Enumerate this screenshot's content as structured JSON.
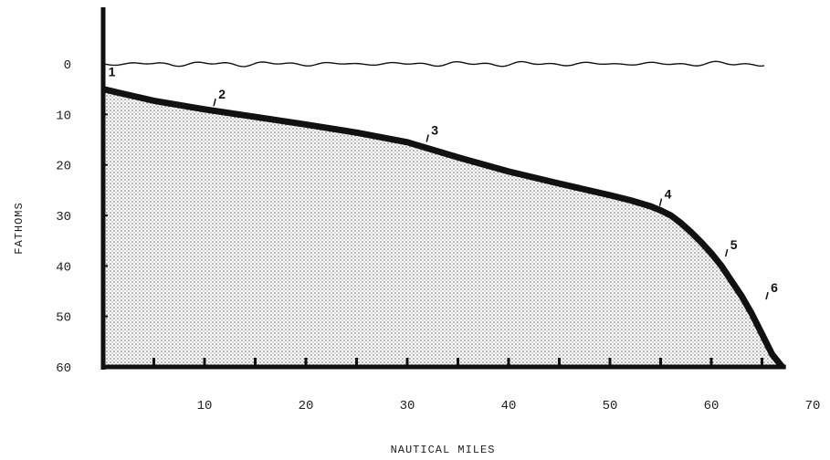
{
  "chart_data": {
    "type": "area",
    "title": "",
    "xlabel": "NAUTICAL MILES",
    "ylabel": "FATHOMS",
    "xlim": [
      0,
      70
    ],
    "ylim": [
      0,
      60
    ],
    "y_inverted": true,
    "x_ticks": [
      "10",
      "20",
      "30",
      "40",
      "50",
      "60",
      "70"
    ],
    "y_ticks": [
      "0",
      "10",
      "20",
      "30",
      "40",
      "50",
      "60"
    ],
    "grid": false,
    "fill_pattern": "stipple",
    "profile": {
      "x": [
        0,
        5,
        10,
        15,
        20,
        25,
        30,
        35,
        40,
        45,
        50,
        52,
        54,
        55,
        56,
        57,
        58,
        59,
        60,
        61,
        62,
        63,
        64,
        65,
        66,
        67
      ],
      "y": [
        5,
        7.3,
        9,
        10.5,
        12,
        13.6,
        15.5,
        18.5,
        21.3,
        23.7,
        26,
        27,
        28.2,
        29,
        30,
        31.5,
        33.3,
        35.3,
        37.5,
        40,
        43,
        46,
        49.5,
        53.5,
        57.5,
        61
      ]
    },
    "stations": [
      {
        "label": "1",
        "x": 0.5,
        "y": 5
      },
      {
        "label": "2",
        "x": 11,
        "y": 8.7
      },
      {
        "label": "3",
        "x": 32,
        "y": 15.8
      },
      {
        "label": "4",
        "x": 55,
        "y": 28.5
      },
      {
        "label": "5",
        "x": 61.5,
        "y": 38.5
      },
      {
        "label": "6",
        "x": 65.5,
        "y": 47
      }
    ],
    "colors": {
      "ink": "#111111",
      "fill": "#9a9a9a",
      "background": "#ffffff"
    }
  }
}
